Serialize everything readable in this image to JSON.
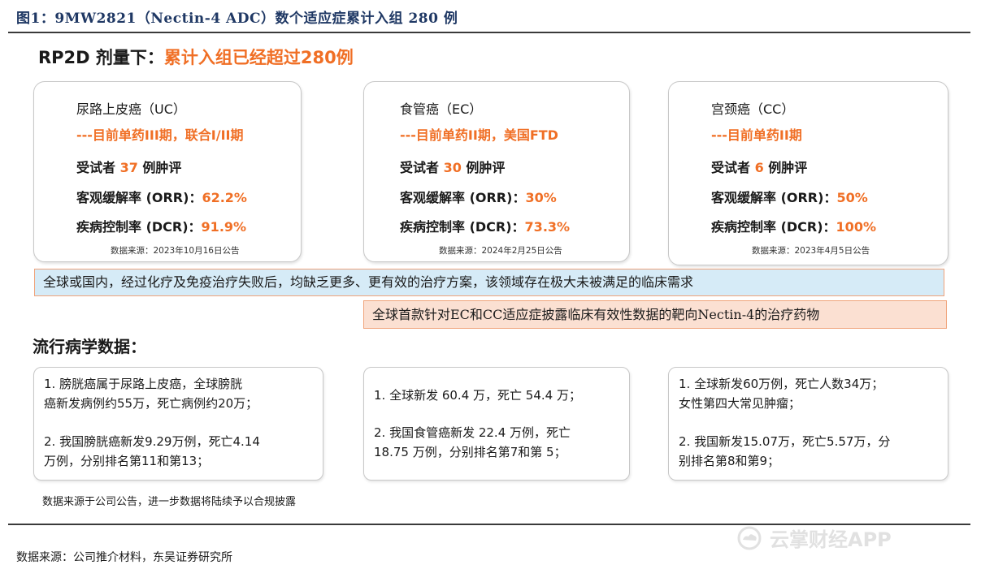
{
  "figure": {
    "title": "图1：9MW2821（Nectin-4 ADC）数个适应症累计入组 280 例"
  },
  "headline": {
    "prefix": "RP2D 剂量下：",
    "accent": "累计入组已经超过280例"
  },
  "cards": [
    {
      "name": "尿路上皮癌（UC）",
      "status": "---目前单药III期，联合I/II期",
      "subjects_prefix": "受试者 ",
      "subjects_count": "37",
      "subjects_suffix": " 例肿评",
      "orr_label": "客观缓解率 (ORR)：",
      "orr_value": "62.2%",
      "dcr_label": "疾病控制率 (DCR)：",
      "dcr_value": "91.9%",
      "source": "数据来源：2023年10月16日公告"
    },
    {
      "name": "食管癌（EC）",
      "status": "---目前单药II期，美国FTD",
      "subjects_prefix": "受试者 ",
      "subjects_count": "30",
      "subjects_suffix": " 例肿评",
      "orr_label": "客观缓解率 (ORR)：",
      "orr_value": "30%",
      "dcr_label": "疾病控制率 (DCR)：",
      "dcr_value": "73.3%",
      "source": "数据来源：2024年2月25日公告"
    },
    {
      "name": "宫颈癌（CC）",
      "status": "---目前单药II期",
      "subjects_prefix": "受试者 ",
      "subjects_count": "6",
      "subjects_suffix": " 例肿评",
      "orr_label": "客观缓解率 (ORR)：",
      "orr_value": "50%",
      "dcr_label": "疾病控制率 (DCR)：",
      "dcr_value": "100%",
      "source": "数据来源：2023年4月5日公告"
    }
  ],
  "bands": {
    "need": "全球或国内，经过化疗及免疫治疗失败后，均缺乏更多、更有效的治疗方案，该领域存在极大未被满足的临床需求",
    "first": "全球首款针对EC和CC适应症披露临床有效性数据的靶向Nectin-4的治疗药物"
  },
  "epidemiology": {
    "title": "流行病学数据：",
    "boxes": [
      {
        "p1_l1": "1. 膀胱癌属于尿路上皮癌，全球膀胱",
        "p1_l2": "癌新发病例约55万，死亡病例约20万；",
        "p2_l1": "2. 我国膀胱癌新发9.29万例，死亡4.14",
        "p2_l2": "万例，分别排名第11和第13；"
      },
      {
        "p1_l1": "1. 全球新发 60.4 万，死亡 54.4 万；",
        "p2_l1": "2. 我国食管癌新发 22.4 万例，死亡",
        "p2_l2": "18.75 万例，分别排名第7和第 5；"
      },
      {
        "p1_l1": "1. 全球新发60万例，死亡人数34万；",
        "p1_l2": "女性第四大常见肿瘤；",
        "p2_l1": "2. 我国新发15.07万，死亡5.57万，分",
        "p2_l2": "别排名第8和第9；"
      }
    ]
  },
  "note": "数据来源于公司公告，进一步数据将陆续予以合规披露",
  "footer": {
    "source": "数据来源：公司推介材料，东吴证券研究所"
  },
  "watermark": {
    "text": "云掌财经APP",
    "icon": "cloud-logo-icon"
  },
  "colors": {
    "accent": "#f06f25",
    "title": "#1f3864",
    "band_blue": "#d6ebf7",
    "band_orange": "#fbe0d2"
  }
}
